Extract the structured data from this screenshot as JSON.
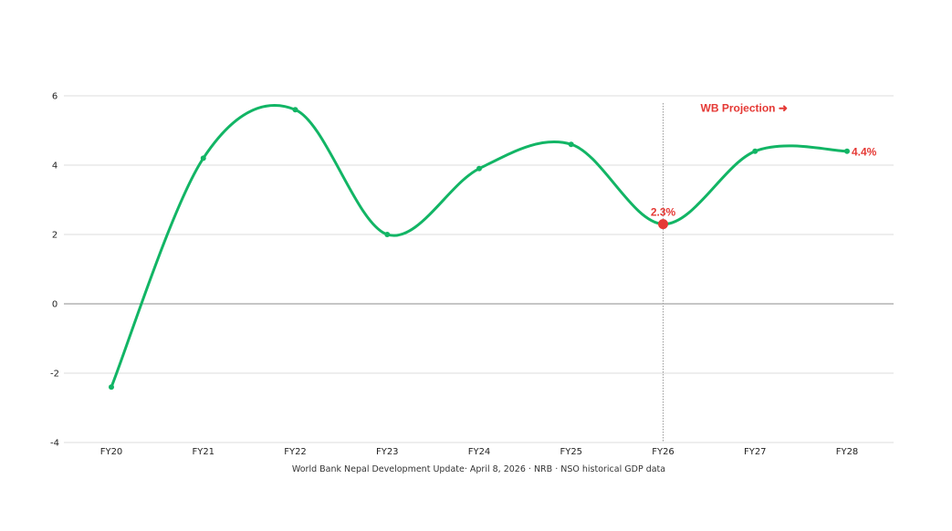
{
  "chart_data": {
    "type": "line",
    "title": "",
    "xlabel": "",
    "ylabel": "",
    "categories": [
      "FY20",
      "FY21",
      "FY22",
      "FY23",
      "FY24",
      "FY25",
      "FY26",
      "FY27",
      "FY28"
    ],
    "series": [
      {
        "name": "",
        "values": [
          -2.4,
          4.2,
          5.6,
          2.0,
          3.9,
          4.6,
          2.3,
          4.4,
          4.4
        ],
        "color": "#12b565"
      }
    ],
    "ylim": [
      -4,
      6
    ],
    "yticks": [
      -4,
      -2,
      0,
      2,
      4,
      6
    ],
    "grid": true,
    "annotations": {
      "projection_label": "WB Projection ➜",
      "projection_category": "FY26",
      "highlight_label": "2.3%",
      "highlight_category": "FY26",
      "end_label": "4.4%",
      "end_category": "FY28",
      "highlight_color": "#e53935"
    },
    "source": "World Bank Nepal Development Update· April 8, 2026 · NRB · NSO historical GDP data"
  }
}
